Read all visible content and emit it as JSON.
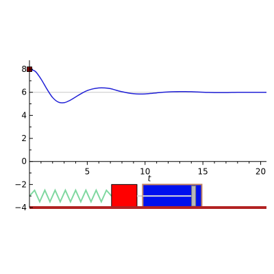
{
  "colors": {
    "response": "#1f1fd6",
    "reference": "#c8c8c8",
    "spring": "#7fd8a0",
    "mass": "#ff0000",
    "cylinder": "#0010ee",
    "cylinder_border": "#c08060",
    "rod": "#d8d8d8",
    "piston": "#b8b8b8",
    "ground": "#b22222",
    "start_marker": "#800000"
  },
  "chart_data": {
    "type": "line",
    "title": "",
    "xlabel": "t",
    "ylabel": "",
    "xlim": [
      0,
      20.5
    ],
    "ylim": [
      -4,
      8.6
    ],
    "xticks": [
      5,
      10,
      15,
      20
    ],
    "yticks": [
      -4,
      -2,
      0,
      2,
      4,
      6,
      8
    ],
    "grid": false,
    "series": [
      {
        "values": {
          "x": [
            0,
            0.5,
            1,
            1.5,
            2,
            2.5,
            3,
            3.5,
            4,
            4.5,
            5,
            5.5,
            6,
            6.5,
            7,
            7.5,
            8,
            8.5,
            9,
            9.5,
            10,
            10.5,
            11,
            11.5,
            12,
            12.5,
            13,
            13.5,
            14,
            14.5,
            15,
            15.5,
            16,
            16.5,
            17,
            17.5,
            18,
            18.5,
            19,
            19.5,
            20,
            20.5
          ],
          "y": [
            8.0,
            7.82,
            7.15,
            6.3,
            5.55,
            5.15,
            5.1,
            5.3,
            5.6,
            5.9,
            6.15,
            6.3,
            6.38,
            6.38,
            6.32,
            6.18,
            6.05,
            5.95,
            5.88,
            5.85,
            5.86,
            5.9,
            5.95,
            6.0,
            6.03,
            6.05,
            6.06,
            6.06,
            6.05,
            6.03,
            6.01,
            5.99,
            5.98,
            5.98,
            5.98,
            5.99,
            6.0,
            6.0,
            6.0,
            6.0,
            6.0,
            6.0
          ]
        }
      }
    ],
    "reference_line": 6,
    "start_point": [
      0,
      8
    ]
  },
  "scene": {
    "mass_right_x": 9.3,
    "piston_x": 14.2
  }
}
